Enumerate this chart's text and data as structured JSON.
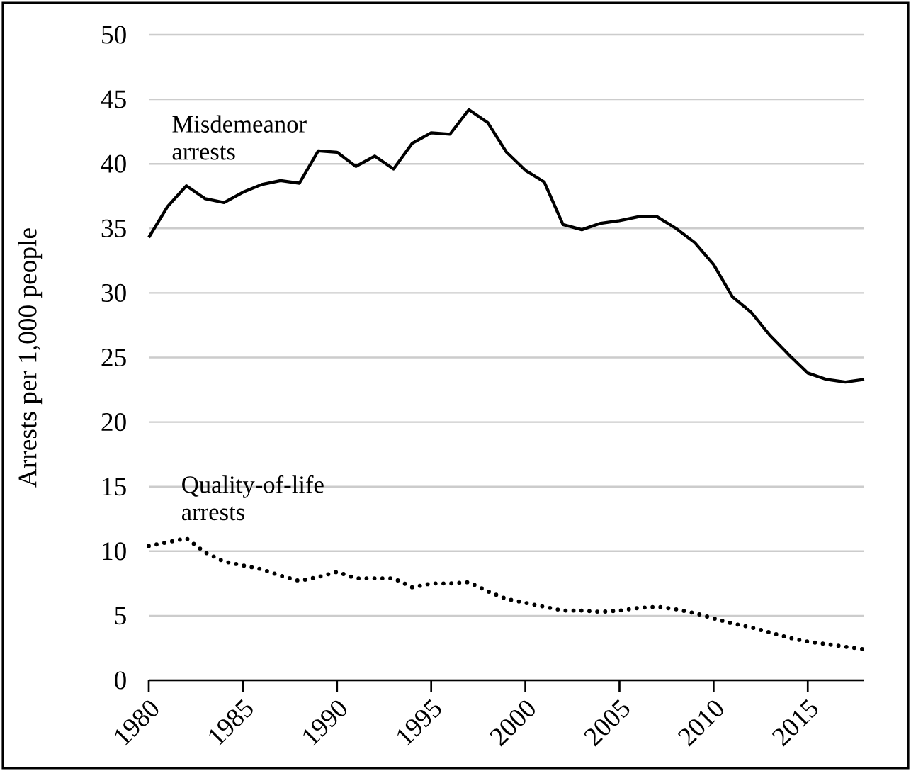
{
  "chart_data": {
    "type": "line",
    "ylabel": "Arrests per 1,000 people",
    "x": [
      1980,
      1981,
      1982,
      1983,
      1984,
      1985,
      1986,
      1987,
      1988,
      1989,
      1990,
      1991,
      1992,
      1993,
      1994,
      1995,
      1996,
      1997,
      1998,
      1999,
      2000,
      2001,
      2002,
      2003,
      2004,
      2005,
      2006,
      2007,
      2008,
      2009,
      2010,
      2011,
      2012,
      2013,
      2014,
      2015,
      2016,
      2017,
      2018
    ],
    "series": [
      {
        "name": "Misdemeanor arrests",
        "color": "#000000",
        "line_style": "solid",
        "values": [
          34.3,
          36.7,
          38.3,
          37.3,
          37.0,
          37.8,
          38.4,
          38.7,
          38.5,
          41.0,
          40.9,
          39.8,
          40.6,
          39.6,
          41.6,
          42.4,
          42.3,
          44.2,
          43.2,
          40.9,
          39.5,
          38.6,
          35.3,
          34.9,
          35.4,
          35.6,
          35.9,
          35.9,
          35.0,
          33.9,
          32.2,
          29.7,
          28.5,
          26.7,
          25.2,
          23.8,
          23.3,
          23.1,
          23.3
        ]
      },
      {
        "name": "Quality-of-life arrests",
        "color": "#000000",
        "line_style": "dotted",
        "values": [
          10.4,
          10.7,
          11.0,
          9.9,
          9.2,
          8.9,
          8.6,
          8.1,
          7.7,
          8.0,
          8.4,
          7.9,
          7.9,
          7.9,
          7.2,
          7.5,
          7.5,
          7.6,
          6.9,
          6.3,
          6.0,
          5.7,
          5.4,
          5.4,
          5.3,
          5.4,
          5.6,
          5.7,
          5.5,
          5.2,
          4.8,
          4.4,
          4.1,
          3.7,
          3.3,
          3.0,
          2.8,
          2.6,
          2.4
        ]
      }
    ],
    "xlim": [
      1980,
      2018
    ],
    "xticks": [
      1980,
      1985,
      1990,
      1995,
      2000,
      2005,
      2010,
      2015
    ],
    "ylim": [
      0,
      50
    ],
    "yticks": [
      0,
      5,
      10,
      15,
      20,
      25,
      30,
      35,
      40,
      45,
      50
    ],
    "grid": "y",
    "marker": "none"
  }
}
